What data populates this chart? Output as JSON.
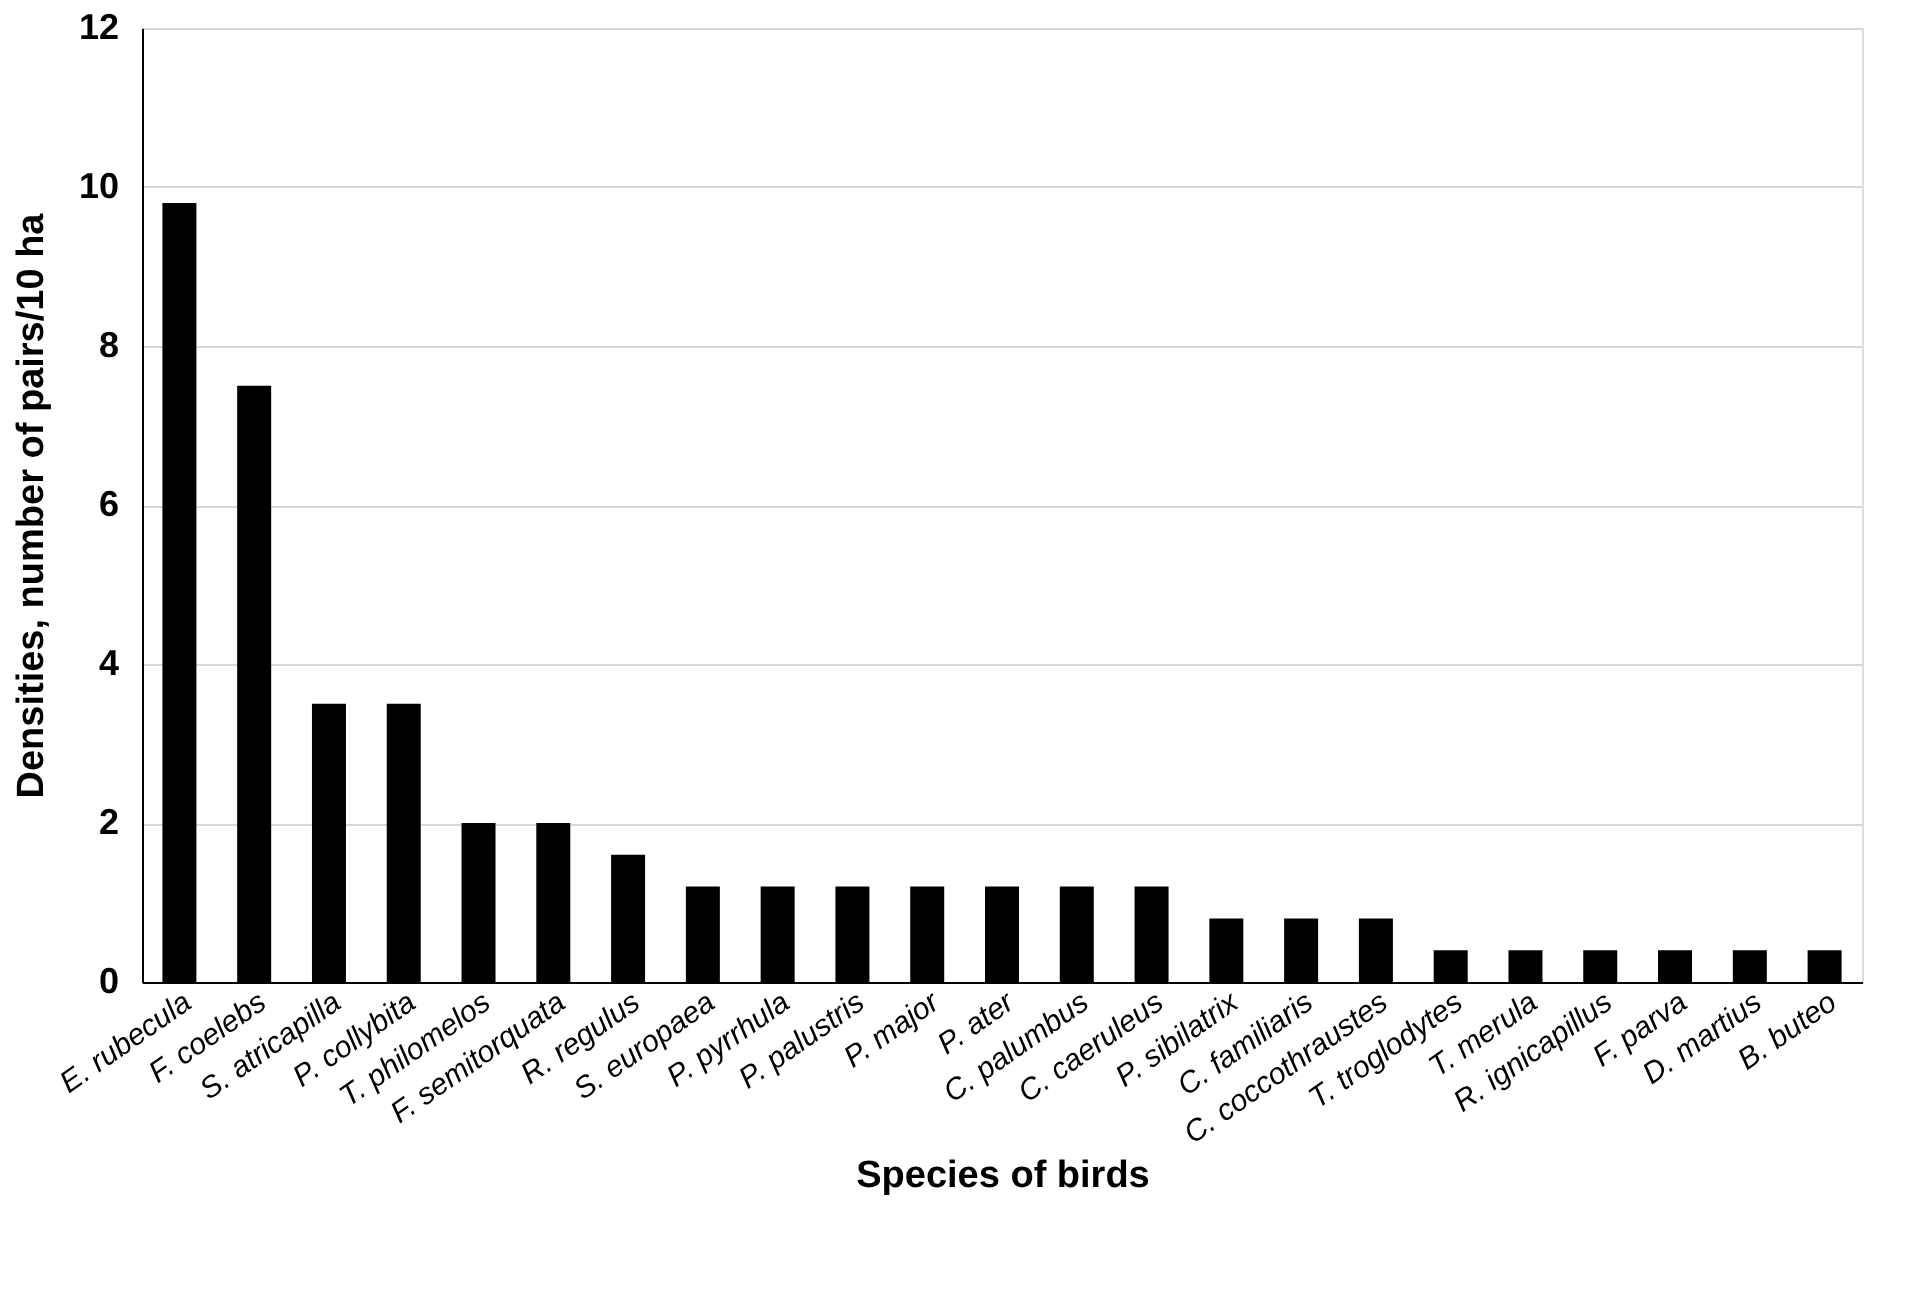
{
  "chart_data": {
    "type": "bar",
    "xlabel": "Species of birds",
    "ylabel": "Densities, number of pairs/10 ha",
    "categories": [
      "E. rubecula",
      "F. coelebs",
      "S. atricapilla",
      "P. collybita",
      "T. philomelos",
      "F. semitorquata",
      "R. regulus",
      "S. europaea",
      "P. pyrrhula",
      "P. palustris",
      "P. major",
      "P. ater",
      "C. palumbus",
      "C. caeruleus",
      "P. sibilatrix",
      "C. familiaris",
      "C. coccothraustes",
      "T. troglodytes",
      "T. merula",
      "R. ignicapillus",
      "F. parva",
      "D. martius",
      "B. buteo"
    ],
    "values": [
      9.8,
      7.5,
      3.5,
      3.5,
      2.0,
      2.0,
      1.6,
      1.2,
      1.2,
      1.2,
      1.2,
      1.2,
      1.2,
      1.2,
      0.8,
      0.8,
      0.8,
      0.4,
      0.4,
      0.4,
      0.4,
      0.4,
      0.4
    ],
    "color": "#000000",
    "ylim": [
      0,
      12
    ],
    "yticks": [
      0,
      2,
      4,
      6,
      8,
      10,
      12
    ],
    "grid": "y"
  }
}
